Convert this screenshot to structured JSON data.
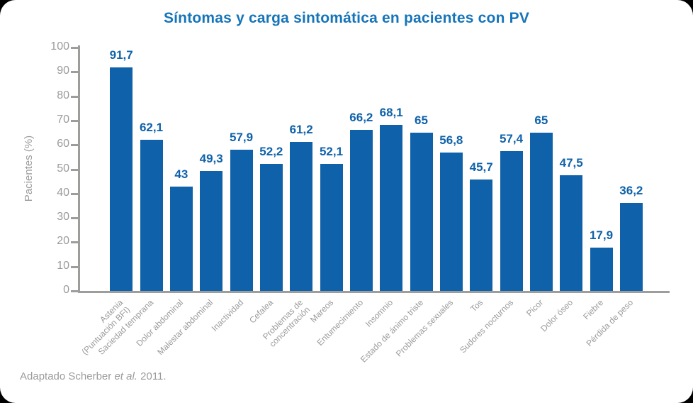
{
  "title": "Síntomas y carga sintomática en pacientes con PV",
  "footer": {
    "prefix": "Adaptado Scherber ",
    "etal": "et al.",
    "suffix": " 2011."
  },
  "colors": {
    "bar": "#0f62a9",
    "title": "#1674b9",
    "axis": "#9d9d9c",
    "tick_label": "#9b9b9b"
  },
  "chart_data": {
    "type": "bar",
    "title": "Síntomas y carga sintomática en pacientes con PV",
    "xlabel": "",
    "ylabel": "Pacientes (%)",
    "ylim": [
      0,
      100
    ],
    "yticks": [
      0,
      10,
      20,
      30,
      40,
      50,
      60,
      70,
      80,
      90,
      100
    ],
    "grid": false,
    "legend": "none",
    "categories": [
      "Astenia\n(Puntuación BFI)",
      "Saciedad temprana",
      "Dolor abdominal",
      "Malestar abdominal",
      "Inactividad",
      "Cefalea",
      "Problemas de\nconcentración",
      "Mareos",
      "Entumecimiento",
      "Insomnio",
      "Estado de ánimo triste",
      "Problemas sexuales",
      "Tos",
      "Sudores nocturnos",
      "Picor",
      "Dolor óseo",
      "Fiebre",
      "Pérdida de peso"
    ],
    "values": [
      91.7,
      62.1,
      43,
      49.3,
      57.9,
      52.2,
      61.2,
      52.1,
      66.2,
      68.1,
      65,
      56.8,
      45.7,
      57.4,
      65,
      47.5,
      17.9,
      36.2
    ],
    "value_labels": [
      "91,7",
      "62,1",
      "43",
      "49,3",
      "57,9",
      "52,2",
      "61,2",
      "52,1",
      "66,2",
      "68,1",
      "65",
      "56,8",
      "45,7",
      "57,4",
      "65",
      "47,5",
      "17,9",
      "36,2"
    ]
  }
}
